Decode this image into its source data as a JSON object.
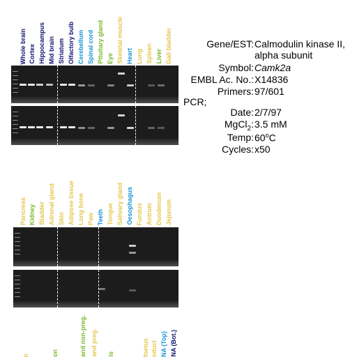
{
  "colors": {
    "navy": "#101070",
    "blue": "#1a93d6",
    "green": "#7ab82a",
    "yellow": "#e6c650",
    "gel_bg": "#1c1c1c"
  },
  "top_panel": {
    "lanes": [
      {
        "label": "Whole brain",
        "color": "navy"
      },
      {
        "label": "Cortex",
        "color": "navy"
      },
      {
        "label": "Hippocampus",
        "color": "navy"
      },
      {
        "label": "Mid brain",
        "color": "navy"
      },
      {
        "label": "Striatum",
        "color": "navy"
      },
      {
        "label": "Olfactory bulb",
        "color": "navy"
      },
      {
        "label": "Cerebellum",
        "color": "blue"
      },
      {
        "label": "Spinal cord",
        "color": "blue"
      },
      {
        "label": "Pituitary gland",
        "color": "green"
      },
      {
        "label": "Eye",
        "color": "green"
      },
      {
        "label": "Skeletal muscle",
        "color": "yellow"
      },
      {
        "label": "Heart",
        "color": "blue"
      },
      {
        "label": "Lung",
        "color": "yellow"
      },
      {
        "label": "Spleen",
        "color": "yellow"
      },
      {
        "label": "Liver",
        "color": "green"
      },
      {
        "label": "Gall bladder",
        "color": "yellow"
      }
    ]
  },
  "mid_panel": {
    "lanes": [
      {
        "label": "Pancreas",
        "color": "yellow"
      },
      {
        "label": "Kidney",
        "color": "green"
      },
      {
        "label": "Bladder",
        "color": "yellow"
      },
      {
        "label": "Adrenal gland",
        "color": "yellow"
      },
      {
        "label": "Skin",
        "color": "yellow"
      },
      {
        "label": "Adipose tissue",
        "color": "yellow"
      },
      {
        "label": "Long bone",
        "color": "yellow"
      },
      {
        "label": "Paw",
        "color": "yellow"
      },
      {
        "label": "Teeth",
        "color": "blue"
      },
      {
        "label": "Tongue",
        "color": "yellow"
      },
      {
        "label": "Salivary gland",
        "color": "yellow"
      },
      {
        "label": "Oesophagus",
        "color": "blue"
      },
      {
        "label": "Fundus",
        "color": "yellow"
      },
      {
        "label": "Antrum",
        "color": "yellow"
      },
      {
        "label": "Duodenum",
        "color": "yellow"
      },
      {
        "label": "Jejunum",
        "color": "yellow"
      }
    ]
  },
  "bottom_labels": [
    {
      "label": "n",
      "color": "yellow"
    },
    {
      "label": "on",
      "color": "green"
    },
    {
      "label": "and non-preg.",
      "color": "green"
    },
    {
      "label": "and preg.",
      "color": "yellow"
    },
    {
      "label": "is",
      "color": "green"
    },
    {
      "label": "foetus",
      "color": "yellow"
    },
    {
      "label": "oduct",
      "color": "yellow"
    },
    {
      "label": "NA (Top)",
      "color": "blue"
    },
    {
      "label": "NA (Bot.)",
      "color": "navy"
    }
  ],
  "info": {
    "gene_key": "Gene/EST:",
    "gene_val_1": "Calmodulin kinase II,",
    "gene_val_2": "alpha subunit",
    "symbol_key": "Symbol:",
    "symbol_val": "Camk2a",
    "embl_key": "EMBL Ac. No.:",
    "embl_val": "X14836",
    "primers_key": "Primers:",
    "primers_val": "97/601",
    "pcr_label": "PCR;",
    "date_key": "Date:",
    "date_val": "2/7/97",
    "mgcl_key_base": "MgCl",
    "mgcl_key_sub": "2",
    "mgcl_key_end": ":",
    "mgcl_val": "3.5 mM",
    "temp_key": "Temp:",
    "temp_val_num": "60",
    "temp_val_sup": "o",
    "temp_val_unit": "C",
    "cycles_key": "Cycles:",
    "cycles_val": "x50"
  }
}
